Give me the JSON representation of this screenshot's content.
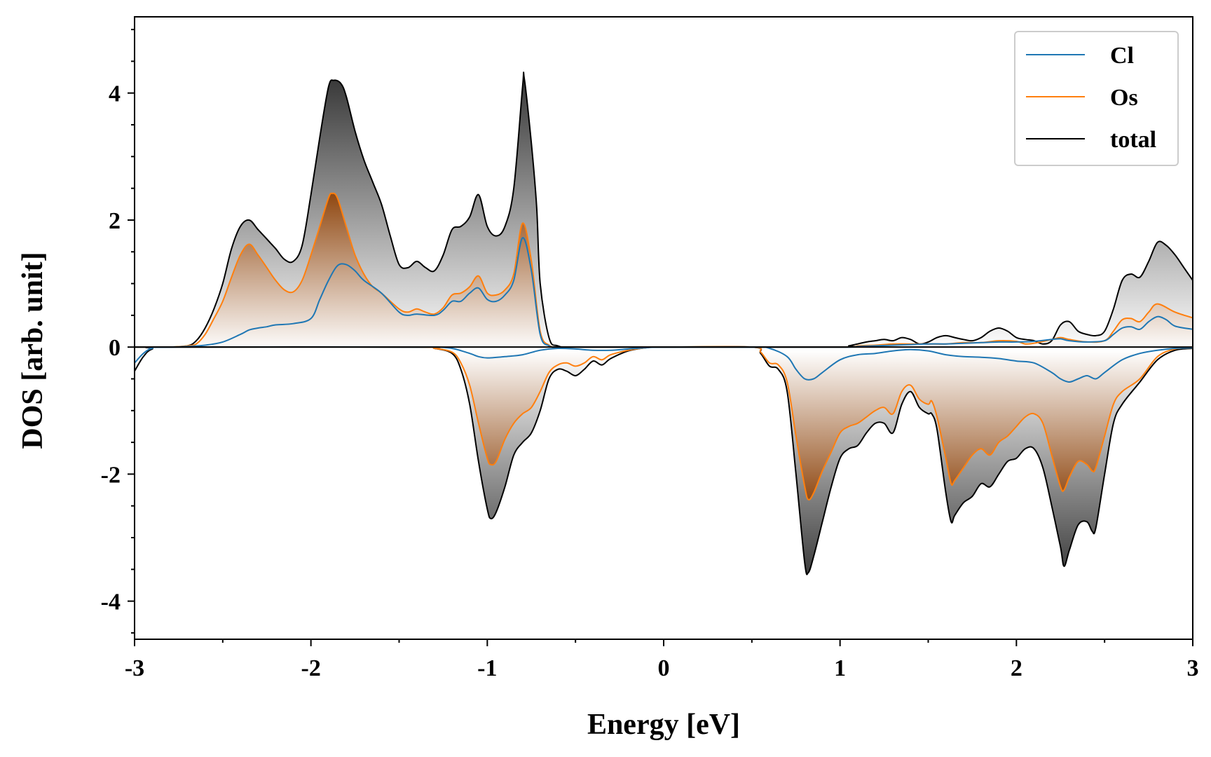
{
  "chart_data": {
    "type": "area",
    "xlabel": "Energy [eV]",
    "ylabel": "DOS [arb. unit]",
    "xlim": [
      -3,
      3
    ],
    "ylim": [
      -4.6,
      5.2
    ],
    "xticks": [
      -3,
      -2,
      -1,
      0,
      1,
      2,
      3
    ],
    "yticks": [
      -4,
      -2,
      0,
      2,
      4
    ],
    "grid": false,
    "legend_position": "top-right",
    "series": [
      {
        "name": "Cl",
        "color": "#1f77b4",
        "fill": "gray",
        "up": {
          "x": [
            -3.0,
            -2.9,
            -2.8,
            -2.7,
            -2.6,
            -2.5,
            -2.4,
            -2.35,
            -2.3,
            -2.25,
            -2.2,
            -2.1,
            -2.0,
            -1.95,
            -1.9,
            -1.85,
            -1.8,
            -1.75,
            -1.7,
            -1.6,
            -1.5,
            -1.45,
            -1.4,
            -1.3,
            -1.25,
            -1.2,
            -1.15,
            -1.1,
            -1.05,
            -1.0,
            -0.95,
            -0.9,
            -0.85,
            -0.8,
            -0.75,
            -0.7,
            -0.65,
            -0.6,
            -0.5,
            0.0,
            1.0,
            1.1,
            1.2,
            1.3,
            1.4,
            1.5,
            1.6,
            1.7,
            1.8,
            1.9,
            2.0,
            2.1,
            2.2,
            2.25,
            2.3,
            2.4,
            2.5,
            2.55,
            2.6,
            2.65,
            2.7,
            2.75,
            2.8,
            2.85,
            2.9,
            3.0
          ],
          "y": [
            0,
            0,
            0,
            0.01,
            0.03,
            0.08,
            0.2,
            0.27,
            0.3,
            0.32,
            0.35,
            0.37,
            0.45,
            0.75,
            1.05,
            1.28,
            1.3,
            1.2,
            1.05,
            0.85,
            0.55,
            0.5,
            0.52,
            0.5,
            0.58,
            0.72,
            0.72,
            0.85,
            0.93,
            0.75,
            0.72,
            0.82,
            1.05,
            1.72,
            1.2,
            0.2,
            0.02,
            0,
            0,
            0,
            0,
            0.01,
            0.02,
            0.03,
            0.04,
            0.05,
            0.05,
            0.06,
            0.07,
            0.08,
            0.08,
            0.09,
            0.12,
            0.13,
            0.1,
            0.08,
            0.1,
            0.2,
            0.3,
            0.32,
            0.28,
            0.4,
            0.48,
            0.43,
            0.33,
            0.28
          ]
        },
        "down": {
          "x": [
            -3.0,
            -2.95,
            -2.9,
            -2.8,
            -1.5,
            -1.3,
            -1.2,
            -1.1,
            -1.05,
            -1.0,
            -0.9,
            -0.8,
            -0.7,
            -0.6,
            -0.5,
            -0.4,
            -0.3,
            -0.2,
            -0.1,
            0.0,
            0.5,
            0.6,
            0.7,
            0.75,
            0.8,
            0.85,
            0.9,
            1.0,
            1.1,
            1.2,
            1.3,
            1.4,
            1.5,
            1.6,
            1.7,
            1.8,
            1.9,
            2.0,
            2.1,
            2.2,
            2.25,
            2.3,
            2.35,
            2.4,
            2.45,
            2.5,
            2.6,
            2.7,
            2.8,
            2.9,
            3.0
          ],
          "y": [
            -0.25,
            -0.1,
            -0.02,
            0,
            0,
            0,
            -0.02,
            -0.1,
            -0.15,
            -0.17,
            -0.15,
            -0.12,
            -0.05,
            -0.02,
            -0.03,
            -0.05,
            -0.05,
            -0.03,
            -0.01,
            0,
            0,
            -0.02,
            -0.15,
            -0.35,
            -0.5,
            -0.5,
            -0.4,
            -0.2,
            -0.12,
            -0.1,
            -0.06,
            -0.04,
            -0.06,
            -0.12,
            -0.15,
            -0.16,
            -0.18,
            -0.22,
            -0.25,
            -0.4,
            -0.5,
            -0.55,
            -0.5,
            -0.45,
            -0.5,
            -0.4,
            -0.2,
            -0.1,
            -0.05,
            -0.02,
            -0.01
          ]
        }
      },
      {
        "name": "Os",
        "color": "#ff7f0e",
        "fill": "brown",
        "up": {
          "x": [
            -3.0,
            -2.9,
            -2.8,
            -2.7,
            -2.65,
            -2.6,
            -2.55,
            -2.5,
            -2.45,
            -2.4,
            -2.35,
            -2.3,
            -2.25,
            -2.2,
            -2.15,
            -2.1,
            -2.05,
            -2.0,
            -1.95,
            -1.9,
            -1.88,
            -1.85,
            -1.8,
            -1.75,
            -1.7,
            -1.65,
            -1.6,
            -1.5,
            -1.45,
            -1.4,
            -1.35,
            -1.3,
            -1.25,
            -1.2,
            -1.15,
            -1.1,
            -1.05,
            -1.0,
            -0.95,
            -0.9,
            -0.85,
            -0.8,
            -0.75,
            -0.7,
            -0.65,
            -0.6,
            -0.5,
            0.0,
            1.0,
            1.1,
            1.2,
            1.3,
            1.4,
            1.5,
            1.6,
            1.7,
            1.8,
            1.9,
            2.0,
            2.05,
            2.1,
            2.2,
            2.25,
            2.3,
            2.4,
            2.5,
            2.55,
            2.6,
            2.65,
            2.7,
            2.75,
            2.8,
            2.9,
            3.0
          ],
          "y": [
            0,
            0,
            0,
            0.02,
            0.05,
            0.2,
            0.45,
            0.72,
            1.1,
            1.45,
            1.62,
            1.45,
            1.25,
            1.05,
            0.9,
            0.87,
            1.05,
            1.45,
            1.9,
            2.35,
            2.42,
            2.35,
            1.9,
            1.45,
            1.15,
            0.95,
            0.85,
            0.6,
            0.55,
            0.6,
            0.55,
            0.52,
            0.62,
            0.82,
            0.85,
            0.95,
            1.12,
            0.85,
            0.82,
            0.9,
            1.15,
            1.95,
            1.35,
            0.25,
            0.03,
            0,
            0,
            0,
            0,
            0.02,
            0.03,
            0.05,
            0.05,
            0.05,
            0.05,
            0.07,
            0.07,
            0.1,
            0.09,
            0.05,
            0.06,
            0.12,
            0.15,
            0.12,
            0.08,
            0.1,
            0.25,
            0.43,
            0.45,
            0.4,
            0.55,
            0.68,
            0.55,
            0.46
          ]
        },
        "down": {
          "x": [
            -3.0,
            -2.9,
            -2.8,
            -1.4,
            -1.3,
            -1.2,
            -1.15,
            -1.1,
            -1.05,
            -1.0,
            -0.98,
            -0.95,
            -0.9,
            -0.85,
            -0.8,
            -0.75,
            -0.7,
            -0.65,
            -0.6,
            -0.55,
            -0.5,
            -0.45,
            -0.4,
            -0.35,
            -0.3,
            -0.2,
            -0.1,
            0.0,
            0.5,
            0.55,
            0.6,
            0.65,
            0.7,
            0.75,
            0.8,
            0.82,
            0.85,
            0.9,
            0.95,
            1.0,
            1.05,
            1.1,
            1.15,
            1.2,
            1.25,
            1.3,
            1.35,
            1.4,
            1.45,
            1.5,
            1.52,
            1.55,
            1.6,
            1.63,
            1.65,
            1.7,
            1.75,
            1.8,
            1.85,
            1.9,
            1.95,
            2.0,
            2.05,
            2.1,
            2.15,
            2.2,
            2.25,
            2.27,
            2.3,
            2.35,
            2.4,
            2.43,
            2.45,
            2.5,
            2.55,
            2.6,
            2.7,
            2.8,
            2.9,
            3.0
          ],
          "y": [
            0,
            0,
            0,
            0,
            -0.02,
            -0.08,
            -0.25,
            -0.6,
            -1.2,
            -1.75,
            -1.85,
            -1.8,
            -1.45,
            -1.2,
            -1.05,
            -0.95,
            -0.7,
            -0.4,
            -0.28,
            -0.25,
            -0.3,
            -0.25,
            -0.15,
            -0.2,
            -0.12,
            -0.05,
            -0.01,
            0,
            0,
            -0.08,
            -0.25,
            -0.28,
            -0.55,
            -1.4,
            -2.2,
            -2.4,
            -2.3,
            -1.95,
            -1.65,
            -1.35,
            -1.25,
            -1.2,
            -1.1,
            -1.0,
            -0.95,
            -1.05,
            -0.7,
            -0.6,
            -0.82,
            -0.9,
            -0.85,
            -1.1,
            -1.75,
            -2.15,
            -2.1,
            -1.9,
            -1.7,
            -1.6,
            -1.7,
            -1.5,
            -1.4,
            -1.25,
            -1.1,
            -1.05,
            -1.2,
            -1.7,
            -2.2,
            -2.25,
            -2.05,
            -1.8,
            -1.85,
            -1.95,
            -1.9,
            -1.4,
            -0.9,
            -0.7,
            -0.5,
            -0.15,
            -0.03,
            -0.01
          ]
        }
      },
      {
        "name": "total",
        "color": "#000000",
        "fill": "black",
        "up": {
          "x": [
            -3.0,
            -2.9,
            -2.8,
            -2.7,
            -2.65,
            -2.6,
            -2.55,
            -2.5,
            -2.45,
            -2.4,
            -2.35,
            -2.3,
            -2.25,
            -2.2,
            -2.15,
            -2.1,
            -2.05,
            -2.0,
            -1.95,
            -1.9,
            -1.87,
            -1.83,
            -1.8,
            -1.75,
            -1.7,
            -1.65,
            -1.6,
            -1.55,
            -1.5,
            -1.45,
            -1.4,
            -1.35,
            -1.3,
            -1.25,
            -1.2,
            -1.15,
            -1.1,
            -1.05,
            -1.0,
            -0.95,
            -0.9,
            -0.85,
            -0.8,
            -0.79,
            -0.75,
            -0.72,
            -0.7,
            -0.65,
            -0.6,
            -0.5,
            0.0,
            1.0,
            1.05,
            1.1,
            1.15,
            1.2,
            1.25,
            1.3,
            1.35,
            1.4,
            1.45,
            1.5,
            1.55,
            1.6,
            1.65,
            1.7,
            1.75,
            1.8,
            1.85,
            1.9,
            1.95,
            2.0,
            2.05,
            2.1,
            2.15,
            2.2,
            2.25,
            2.3,
            2.35,
            2.4,
            2.45,
            2.5,
            2.55,
            2.6,
            2.65,
            2.7,
            2.75,
            2.8,
            2.85,
            2.9,
            2.95,
            3.0
          ],
          "y": [
            0,
            0,
            0,
            0.02,
            0.1,
            0.3,
            0.6,
            1.0,
            1.55,
            1.9,
            2.0,
            1.85,
            1.7,
            1.55,
            1.38,
            1.35,
            1.6,
            2.4,
            3.3,
            4.1,
            4.2,
            4.15,
            3.95,
            3.4,
            2.95,
            2.6,
            2.25,
            1.75,
            1.3,
            1.25,
            1.35,
            1.25,
            1.2,
            1.45,
            1.85,
            1.9,
            2.05,
            2.4,
            1.9,
            1.75,
            1.9,
            2.5,
            4.1,
            4.22,
            3.2,
            2.2,
            1.0,
            0.15,
            0.02,
            0,
            0,
            0,
            0.02,
            0.05,
            0.08,
            0.1,
            0.12,
            0.1,
            0.15,
            0.12,
            0.05,
            0.08,
            0.15,
            0.18,
            0.15,
            0.12,
            0.1,
            0.15,
            0.25,
            0.3,
            0.25,
            0.15,
            0.12,
            0.1,
            0.05,
            0.1,
            0.35,
            0.4,
            0.25,
            0.2,
            0.18,
            0.25,
            0.6,
            1.05,
            1.15,
            1.1,
            1.35,
            1.65,
            1.6,
            1.45,
            1.25,
            1.05
          ]
        },
        "down": {
          "x": [
            -3.0,
            -2.95,
            -2.9,
            -2.8,
            -1.4,
            -1.3,
            -1.2,
            -1.15,
            -1.1,
            -1.05,
            -1.0,
            -0.98,
            -0.95,
            -0.9,
            -0.85,
            -0.8,
            -0.75,
            -0.7,
            -0.65,
            -0.6,
            -0.55,
            -0.5,
            -0.45,
            -0.4,
            -0.35,
            -0.3,
            -0.2,
            -0.1,
            0.0,
            0.5,
            0.55,
            0.6,
            0.65,
            0.7,
            0.75,
            0.8,
            0.82,
            0.85,
            0.9,
            0.95,
            1.0,
            1.05,
            1.1,
            1.15,
            1.2,
            1.25,
            1.3,
            1.35,
            1.4,
            1.45,
            1.5,
            1.52,
            1.55,
            1.6,
            1.63,
            1.65,
            1.7,
            1.75,
            1.8,
            1.85,
            1.9,
            1.95,
            2.0,
            2.05,
            2.1,
            2.15,
            2.2,
            2.25,
            2.27,
            2.3,
            2.35,
            2.4,
            2.43,
            2.45,
            2.5,
            2.55,
            2.6,
            2.7,
            2.8,
            2.9,
            3.0
          ],
          "y": [
            -0.38,
            -0.15,
            -0.03,
            0,
            0,
            -0.02,
            -0.1,
            -0.35,
            -0.9,
            -1.8,
            -2.55,
            -2.7,
            -2.6,
            -2.2,
            -1.7,
            -1.5,
            -1.35,
            -1.0,
            -0.5,
            -0.35,
            -0.38,
            -0.45,
            -0.35,
            -0.22,
            -0.28,
            -0.18,
            -0.06,
            -0.01,
            0,
            0,
            -0.1,
            -0.3,
            -0.35,
            -0.7,
            -2.0,
            -3.4,
            -3.55,
            -3.3,
            -2.75,
            -2.2,
            -1.75,
            -1.6,
            -1.55,
            -1.35,
            -1.2,
            -1.2,
            -1.35,
            -0.9,
            -0.7,
            -0.95,
            -1.05,
            -1.05,
            -1.3,
            -2.3,
            -2.75,
            -2.65,
            -2.45,
            -2.35,
            -2.15,
            -2.2,
            -2.0,
            -1.8,
            -1.75,
            -1.6,
            -1.6,
            -1.9,
            -2.5,
            -3.15,
            -3.45,
            -3.2,
            -2.8,
            -2.75,
            -2.9,
            -2.85,
            -2.0,
            -1.2,
            -0.9,
            -0.55,
            -0.2,
            -0.05,
            -0.02
          ]
        }
      }
    ]
  }
}
